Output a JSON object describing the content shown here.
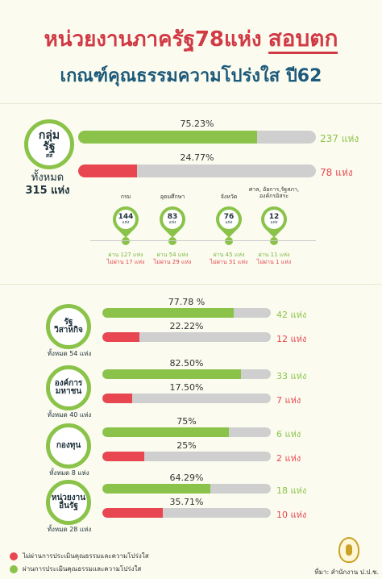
{
  "header": {
    "title_part1": "หน่วยงานภาครัฐ78แห่ง",
    "title_part2": "สอบตก",
    "subtitle": "เกณฑ์คุณธรรมความโปร่งใส ปี62"
  },
  "colors": {
    "pass": "#8bc34a",
    "fail": "#e84650",
    "track": "#cfcfcf",
    "title": "#d13a45",
    "subtitle": "#1e5a7a"
  },
  "group_badge": {
    "line1": "กลุ่ม",
    "line2": "รัฐ",
    "line3": "สส",
    "total_label": "ทั้งหมด",
    "total_value": "315 แห่ง"
  },
  "subgroups": [
    {
      "label": "กรม",
      "value": "144",
      "unit": "แห่ง",
      "pass": "ผ่าน 127 แห่ง",
      "fail": "ไม่ผ่าน 17 แห่ง"
    },
    {
      "label": "อุดมศึกษา",
      "value": "83",
      "unit": "แห่ง",
      "pass": "ผ่าน 54 แห่ง",
      "fail": "ไม่ผ่าน 29 แห่ง"
    },
    {
      "label": "จังหวัด",
      "value": "76",
      "unit": "แห่ง",
      "pass": "ผ่าน 45 แห่ง",
      "fail": "ไม่ผ่าน 31 แห่ง"
    },
    {
      "label": "ศาล, อัยการ,รัฐสภา, องค์กรอิสระ",
      "value": "12",
      "unit": "แห่ง",
      "pass": "ผ่าน 11 แห่ง",
      "fail": "ไม่ผ่าน 1 แห่ง"
    }
  ],
  "sections": [
    {
      "name_line1": "รัฐ",
      "name_line2": "วิสาหกิจ",
      "total": "ทั้งหมด 54 แห่ง"
    },
    {
      "name_line1": "องค์การ",
      "name_line2": "มหาชน",
      "total": "ทั้งหมด 40 แห่ง"
    },
    {
      "name_line1": "กองทุน",
      "name_line2": "",
      "total": "ทั้งหมด 8 แห่ง"
    },
    {
      "name_line1": "หน่วยงาน",
      "name_line2": "อื่นรัฐ",
      "total": "ทั้งหมด 28 แห่ง"
    }
  ],
  "legend": {
    "fail": "ไม่ผ่านการประเมินคุณธรรมและความโปร่งใส",
    "pass": "ผ่านการประเมินคุณธรรมและความโปร่งใส"
  },
  "source": "ที่มา: สำนักงาน ป.ป.ช.",
  "chart_data": [
    {
      "type": "bar",
      "group": "กลุ่มรัฐ",
      "series": [
        {
          "status": "pass",
          "percent": 75.23,
          "label": "75.23%",
          "count_label": "237 แห่ง"
        },
        {
          "status": "fail",
          "percent": 24.77,
          "label": "24.77%",
          "count_label": "78 แห่ง"
        }
      ]
    },
    {
      "type": "bar",
      "group": "รัฐวิสาหกิจ",
      "series": [
        {
          "status": "pass",
          "percent": 77.78,
          "label": "77.78 %",
          "count_label": "42 แห่ง"
        },
        {
          "status": "fail",
          "percent": 22.22,
          "label": "22.22%",
          "count_label": "12 แห่ง"
        }
      ]
    },
    {
      "type": "bar",
      "group": "องค์การมหาชน",
      "series": [
        {
          "status": "pass",
          "percent": 82.5,
          "label": "82.50%",
          "count_label": "33 แห่ง"
        },
        {
          "status": "fail",
          "percent": 17.5,
          "label": "17.50%",
          "count_label": "7 แห่ง"
        }
      ]
    },
    {
      "type": "bar",
      "group": "กองทุน",
      "series": [
        {
          "status": "pass",
          "percent": 75,
          "label": "75%",
          "count_label": "6 แห่ง"
        },
        {
          "status": "fail",
          "percent": 25,
          "label": "25%",
          "count_label": "2 แห่ง"
        }
      ]
    },
    {
      "type": "bar",
      "group": "หน่วยงานอื่นรัฐ",
      "series": [
        {
          "status": "pass",
          "percent": 64.29,
          "label": "64.29%",
          "count_label": "18 แห่ง"
        },
        {
          "status": "fail",
          "percent": 35.71,
          "label": "35.71%",
          "count_label": "10 แห่ง"
        }
      ]
    }
  ]
}
